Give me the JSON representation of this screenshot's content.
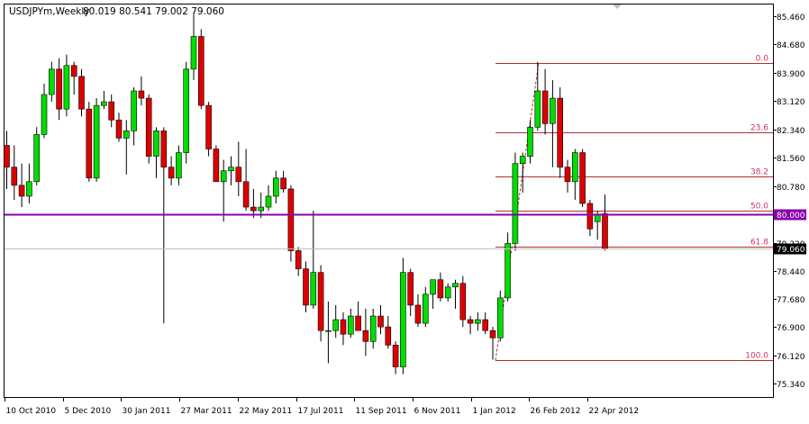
{
  "header": {
    "symbol": "USDJPYm,Weekly",
    "ohlc": "80.019 80.541 79.002 79.060"
  },
  "colors": {
    "background": "#ffffff",
    "frame": "#000000",
    "bull": "#00dd00",
    "bear": "#dd0000",
    "wick": "#000000",
    "fib": "#b03030",
    "fib_label": "#cc3366",
    "support_line": "#8800aa",
    "support_badge": "#8800aa",
    "price_line": "#c0c0c0",
    "price_badge": "#000000"
  },
  "chart_data": {
    "type": "candlestick",
    "title": "USDJPYm,Weekly",
    "ylim": [
      75.0,
      86.0
    ],
    "y_ticks": [
      "85.460",
      "84.680",
      "83.900",
      "83.120",
      "82.340",
      "81.560",
      "80.780",
      "80.000",
      "79.220",
      "78.440",
      "77.680",
      "76.900",
      "76.120",
      "75.340"
    ],
    "x_labels": [
      "10 Oct 2010",
      "5 Dec 2010",
      "30 Jan 2011",
      "27 Mar 2011",
      "22 May 2011",
      "17 Jul 2011",
      "11 Sep 2011",
      "6 Nov 2011",
      "1 Jan 2012",
      "26 Feb 2012",
      "22 Apr 2012"
    ],
    "candles": [
      [
        81.9,
        82.3,
        80.7,
        81.3
      ],
      [
        81.3,
        81.9,
        80.4,
        80.8
      ],
      [
        80.8,
        81.4,
        80.2,
        80.5
      ],
      [
        80.5,
        81.4,
        80.3,
        80.9
      ],
      [
        80.9,
        82.4,
        80.8,
        82.2
      ],
      [
        82.2,
        83.6,
        82.1,
        83.3
      ],
      [
        83.3,
        84.2,
        83.1,
        84.0
      ],
      [
        84.0,
        84.3,
        82.6,
        82.9
      ],
      [
        82.9,
        84.4,
        82.7,
        84.1
      ],
      [
        84.1,
        84.2,
        83.3,
        83.8
      ],
      [
        83.8,
        84.0,
        82.7,
        82.9
      ],
      [
        82.9,
        83.1,
        80.9,
        81.0
      ],
      [
        81.0,
        83.2,
        80.9,
        83.0
      ],
      [
        83.0,
        83.4,
        82.9,
        83.1
      ],
      [
        83.1,
        83.3,
        82.4,
        82.6
      ],
      [
        82.6,
        82.8,
        82.0,
        82.1
      ],
      [
        82.1,
        82.6,
        81.1,
        82.3
      ],
      [
        82.3,
        83.5,
        81.9,
        83.4
      ],
      [
        83.4,
        83.8,
        83.0,
        83.2
      ],
      [
        83.2,
        83.3,
        81.4,
        81.6
      ],
      [
        81.6,
        82.4,
        81.0,
        82.3
      ],
      [
        82.3,
        82.4,
        77.0,
        81.3
      ],
      [
        81.3,
        81.6,
        80.8,
        81.0
      ],
      [
        81.0,
        81.9,
        80.8,
        81.7
      ],
      [
        81.7,
        84.2,
        81.4,
        84.0
      ],
      [
        84.0,
        85.5,
        83.7,
        84.9
      ],
      [
        84.9,
        85.1,
        82.9,
        83.0
      ],
      [
        83.0,
        83.1,
        81.6,
        81.8
      ],
      [
        81.8,
        81.9,
        80.9,
        80.9
      ],
      [
        80.9,
        81.5,
        79.8,
        81.2
      ],
      [
        81.2,
        81.6,
        80.8,
        81.3
      ],
      [
        81.3,
        82.0,
        80.5,
        80.9
      ],
      [
        80.9,
        81.8,
        80.1,
        80.2
      ],
      [
        80.2,
        80.7,
        79.9,
        80.1
      ],
      [
        80.1,
        80.6,
        79.9,
        80.2
      ],
      [
        80.2,
        80.8,
        80.1,
        80.5
      ],
      [
        80.5,
        81.2,
        80.3,
        81.0
      ],
      [
        81.0,
        81.2,
        80.6,
        80.7
      ],
      [
        80.7,
        80.8,
        78.7,
        79.0
      ],
      [
        79.0,
        79.1,
        78.3,
        78.5
      ],
      [
        78.5,
        78.7,
        77.3,
        77.5
      ],
      [
        77.5,
        80.1,
        77.4,
        78.4
      ],
      [
        78.4,
        78.6,
        76.5,
        76.8
      ],
      [
        76.8,
        77.6,
        75.9,
        76.8
      ],
      [
        76.8,
        77.5,
        76.6,
        77.1
      ],
      [
        77.1,
        77.3,
        76.4,
        76.7
      ],
      [
        76.7,
        77.4,
        76.6,
        77.2
      ],
      [
        77.2,
        77.6,
        76.8,
        76.8
      ],
      [
        76.8,
        77.4,
        76.1,
        76.5
      ],
      [
        76.5,
        77.4,
        76.3,
        77.2
      ],
      [
        77.2,
        77.5,
        76.7,
        76.9
      ],
      [
        76.9,
        77.2,
        76.3,
        76.4
      ],
      [
        76.4,
        76.5,
        75.6,
        75.8
      ],
      [
        75.8,
        78.8,
        75.6,
        78.4
      ],
      [
        78.4,
        78.5,
        77.2,
        77.5
      ],
      [
        77.5,
        77.8,
        76.9,
        77.0
      ],
      [
        77.0,
        78.0,
        76.9,
        77.8
      ],
      [
        77.8,
        78.1,
        77.4,
        78.2
      ],
      [
        78.2,
        78.4,
        77.6,
        77.7
      ],
      [
        77.7,
        78.1,
        77.6,
        78.0
      ],
      [
        78.0,
        78.2,
        77.4,
        78.1
      ],
      [
        78.1,
        78.3,
        76.9,
        77.1
      ],
      [
        77.1,
        77.2,
        76.7,
        77.0
      ],
      [
        77.0,
        77.3,
        76.8,
        77.1
      ],
      [
        77.1,
        77.3,
        76.7,
        76.8
      ],
      [
        76.8,
        76.9,
        76.0,
        76.6
      ],
      [
        76.6,
        77.9,
        76.5,
        77.7
      ],
      [
        77.7,
        79.5,
        77.6,
        79.2
      ],
      [
        79.2,
        81.7,
        79.0,
        81.4
      ],
      [
        81.4,
        81.7,
        80.6,
        81.6
      ],
      [
        81.6,
        82.6,
        81.4,
        82.4
      ],
      [
        82.4,
        84.2,
        82.3,
        83.4
      ],
      [
        83.4,
        84.0,
        82.2,
        82.5
      ],
      [
        82.5,
        83.7,
        81.3,
        83.2
      ],
      [
        83.2,
        83.5,
        81.0,
        81.3
      ],
      [
        81.3,
        81.5,
        80.6,
        80.9
      ],
      [
        80.9,
        81.8,
        80.4,
        81.7
      ],
      [
        81.7,
        81.8,
        80.2,
        80.3
      ],
      [
        80.3,
        80.4,
        79.4,
        79.6
      ],
      [
        79.8,
        80.1,
        79.3,
        80.0
      ],
      [
        80.019,
        80.541,
        79.002,
        79.06
      ]
    ],
    "fibonacci": {
      "levels": [
        {
          "label": "0.0",
          "price": 84.18
        },
        {
          "label": "23.6",
          "price": 82.25
        },
        {
          "label": "38.2",
          "price": 81.05
        },
        {
          "label": "50.0",
          "price": 80.09
        },
        {
          "label": "61.8",
          "price": 79.12
        },
        {
          "label": "100.0",
          "price": 75.98
        }
      ]
    },
    "support_level": {
      "price": 80.0,
      "label": "80.000"
    },
    "current_price": {
      "price": 79.06,
      "label": "79.060"
    }
  }
}
